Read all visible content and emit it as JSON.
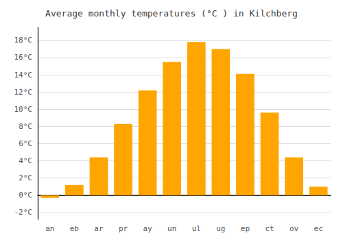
{
  "chart_data": {
    "type": "bar",
    "title": "Average monthly temperatures (°C ) in Kilchberg",
    "categories": [
      "an",
      "eb",
      "ar",
      "pr",
      "ay",
      "un",
      "ul",
      "ug",
      "ep",
      "ct",
      "ov",
      "ec"
    ],
    "values": [
      -0.3,
      1.2,
      4.4,
      8.3,
      12.2,
      15.5,
      17.8,
      17.0,
      14.1,
      9.6,
      4.4,
      1.0
    ],
    "color": "#FFA500",
    "ylim": [
      -2.8,
      19.5
    ],
    "yticks": [
      {
        "value": -2,
        "label": "-2°C"
      },
      {
        "value": 0,
        "label": "0°C"
      },
      {
        "value": 2,
        "label": "2°C"
      },
      {
        "value": 4,
        "label": "4°C"
      },
      {
        "value": 6,
        "label": "6°C"
      },
      {
        "value": 8,
        "label": "8°C"
      },
      {
        "value": 10,
        "label": "10°C"
      },
      {
        "value": 12,
        "label": "12°C"
      },
      {
        "value": 14,
        "label": "14°C"
      },
      {
        "value": 16,
        "label": "16°C"
      },
      {
        "value": 18,
        "label": "18°C"
      }
    ],
    "grid": true
  }
}
